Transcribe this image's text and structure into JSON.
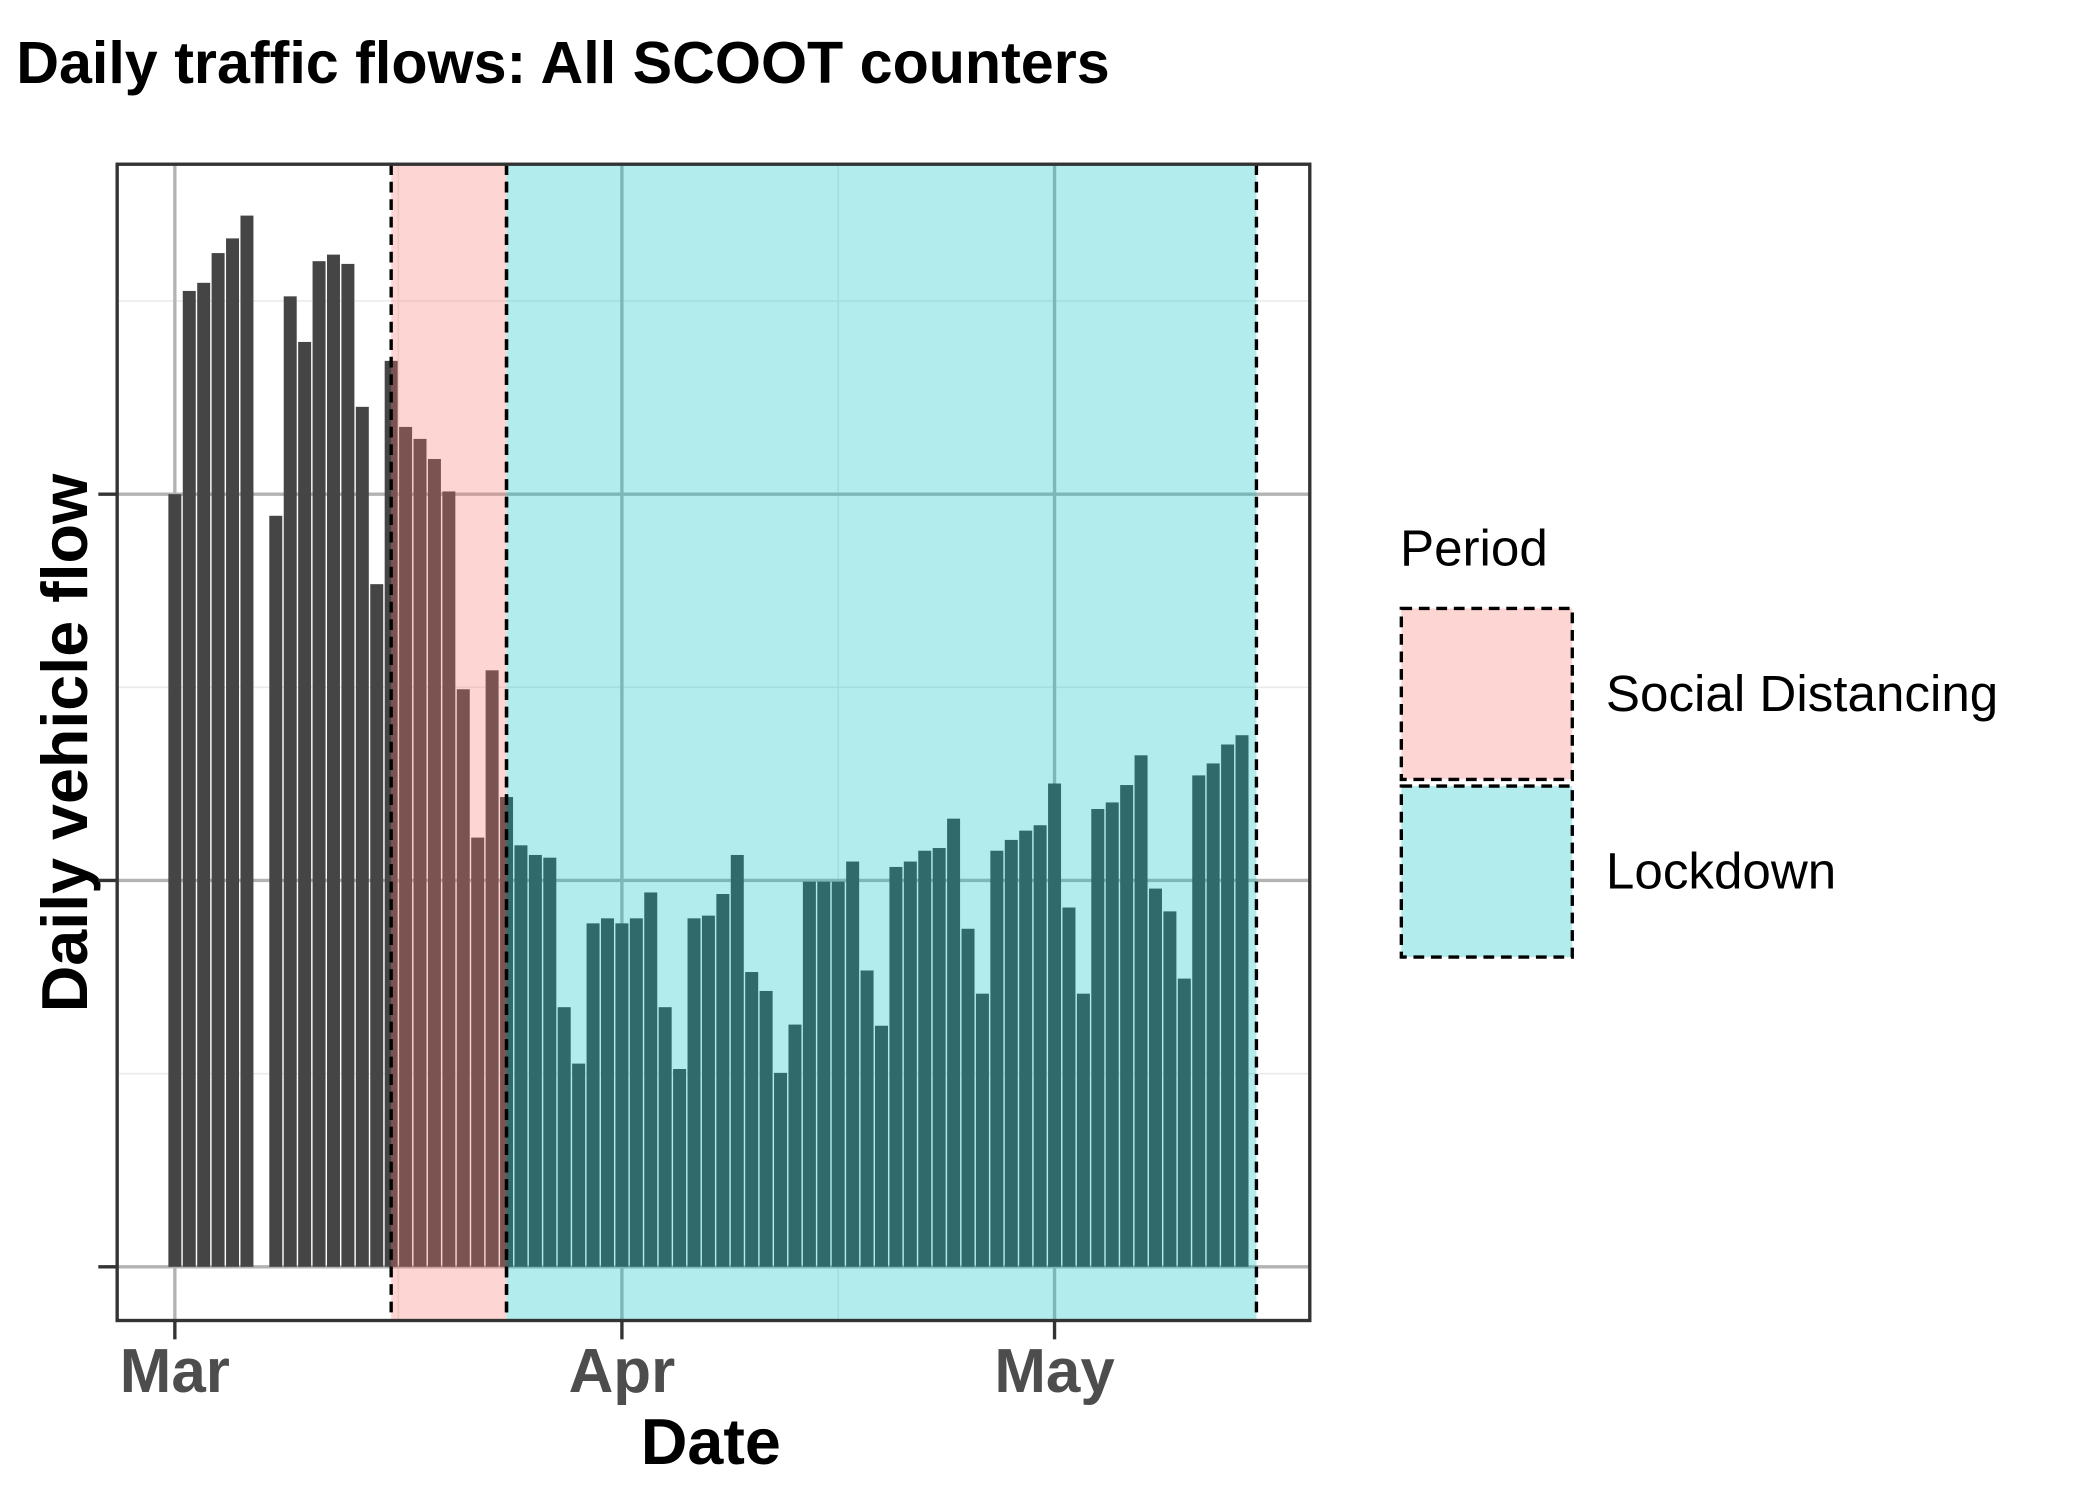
{
  "chart_data": {
    "type": "bar",
    "title": "Daily traffic flows: All SCOOT counters",
    "xlabel": "Date",
    "ylabel": "Daily vehicle flow",
    "x": [
      0,
      1,
      2,
      3,
      4,
      5,
      6,
      7,
      8,
      9,
      10,
      11,
      12,
      13,
      14,
      15,
      16,
      17,
      18,
      19,
      20,
      21,
      22,
      23,
      24,
      25,
      26,
      27,
      28,
      29,
      30,
      31,
      32,
      33,
      34,
      35,
      36,
      37,
      38,
      39,
      40,
      41,
      42,
      43,
      44,
      45,
      46,
      47,
      48,
      49,
      50,
      51,
      52,
      53,
      54,
      55,
      56,
      57,
      58,
      59,
      60,
      61,
      62,
      63,
      64,
      65,
      66,
      67,
      68,
      69,
      70,
      71,
      72,
      73,
      74
    ],
    "values": [
      2.0,
      2.526,
      2.547,
      2.624,
      2.662,
      2.721,
      null,
      1.944,
      2.512,
      2.394,
      2.603,
      2.62,
      2.596,
      2.226,
      1.767,
      2.345,
      2.174,
      2.143,
      2.091,
      2.007,
      1.495,
      1.111,
      1.544,
      1.216,
      1.091,
      1.066,
      1.059,
      0.672,
      0.526,
      0.889,
      0.902,
      0.889,
      0.902,
      0.969,
      0.672,
      0.512,
      0.902,
      0.909,
      0.965,
      1.066,
      0.763,
      0.714,
      0.502,
      0.627,
      0.997,
      0.997,
      0.997,
      1.049,
      0.767,
      0.624,
      1.035,
      1.049,
      1.077,
      1.084,
      1.16,
      0.875,
      0.707,
      1.077,
      1.105,
      1.129,
      1.143,
      1.251,
      0.93,
      0.707,
      1.185,
      1.202,
      1.247,
      1.324,
      0.979,
      0.92,
      0.746,
      1.272,
      1.303,
      1.352,
      1.376
    ],
    "color": "#454545",
    "xlim": [
      -4,
      78.7
    ],
    "ylim": [
      -0.139,
      2.854
    ],
    "xticks": [
      {
        "value": 0,
        "label": "Mar"
      },
      {
        "value": 31,
        "label": "Apr"
      },
      {
        "value": 61,
        "label": "May"
      }
    ],
    "yticks": [
      0,
      1,
      2
    ],
    "grid": true,
    "legend_title": "Period",
    "legend": "right",
    "periods": [
      {
        "name": "Social Distancing",
        "start": 15,
        "end": 23,
        "color": "#F8766D"
      },
      {
        "name": "Lockdown",
        "start": 23,
        "end": 75,
        "color": "#00BFC4"
      }
    ]
  }
}
